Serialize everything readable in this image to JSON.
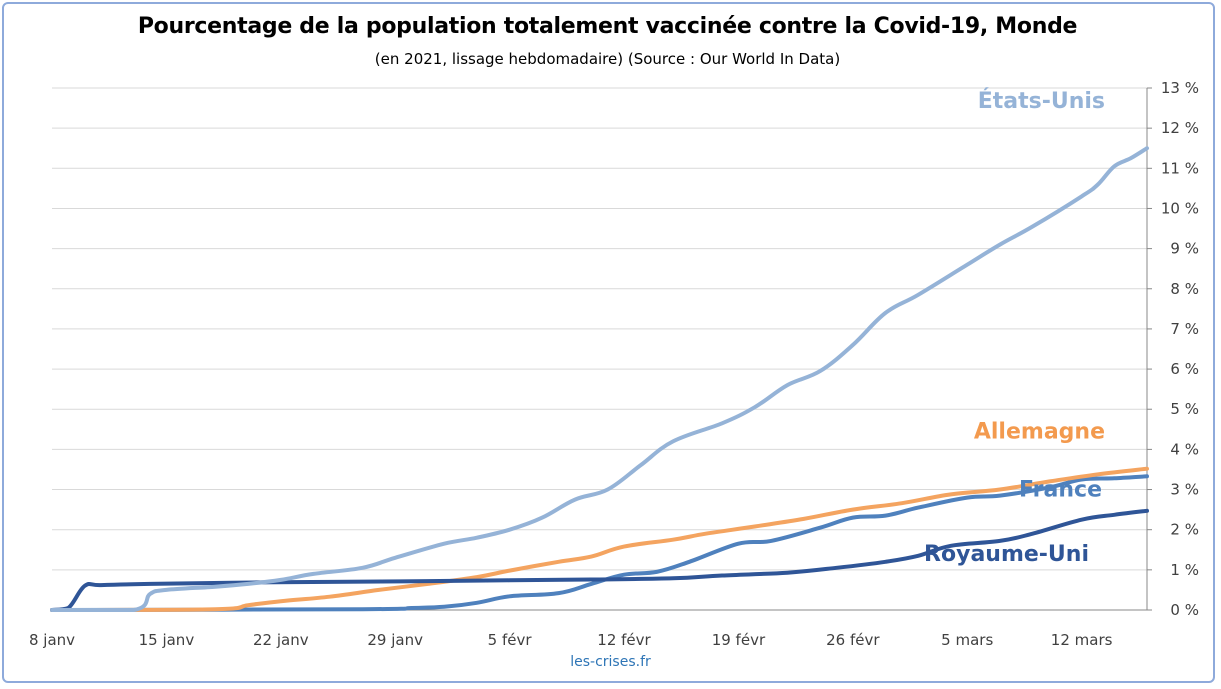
{
  "title": "Pourcentage de la population totalement vaccinée contre la Covid-19, Monde",
  "subtitle": "(en 2021, lissage hebdomadaire) (Source : Our World In Data)",
  "source_label": "les-crises.fr",
  "chart_data": {
    "type": "line",
    "x_tick_labels": [
      "8 janv",
      "15 janv",
      "22 janv",
      "29 janv",
      "5 févr",
      "12 févr",
      "19 févr",
      "26 févr",
      "5 mars",
      "12 mars"
    ],
    "y_tick_labels": [
      "0 %",
      "1 %",
      "2 %",
      "3 %",
      "4 %",
      "5 %",
      "6 %",
      "7 %",
      "8 %",
      "9 %",
      "10 %",
      "11 %",
      "12 %",
      "13 %"
    ],
    "xlim": [
      "2021-01-08",
      "2021-03-16"
    ],
    "ylim": [
      0,
      13
    ],
    "y_axis_side": "right",
    "grid": true,
    "legend": "inline labels",
    "series": [
      {
        "name": "États-Unis",
        "color": "#95b3d7",
        "label_color": "#95b3d7",
        "values": [
          [
            "2021-01-08",
            0
          ],
          [
            "2021-01-13",
            0
          ],
          [
            "2021-01-14",
            0.4
          ],
          [
            "2021-01-15",
            0.5
          ],
          [
            "2021-01-18",
            0.58
          ],
          [
            "2021-01-20",
            0.65
          ],
          [
            "2021-01-22",
            0.75
          ],
          [
            "2021-01-24",
            0.9
          ],
          [
            "2021-01-27",
            1.05
          ],
          [
            "2021-01-29",
            1.3
          ],
          [
            "2021-02-01",
            1.65
          ],
          [
            "2021-02-03",
            1.8
          ],
          [
            "2021-02-05",
            2.0
          ],
          [
            "2021-02-07",
            2.3
          ],
          [
            "2021-02-09",
            2.75
          ],
          [
            "2021-02-11",
            3.0
          ],
          [
            "2021-02-13",
            3.6
          ],
          [
            "2021-02-15",
            4.2
          ],
          [
            "2021-02-18",
            4.65
          ],
          [
            "2021-02-20",
            5.05
          ],
          [
            "2021-02-22",
            5.6
          ],
          [
            "2021-02-24",
            5.95
          ],
          [
            "2021-02-26",
            6.6
          ],
          [
            "2021-02-28",
            7.4
          ],
          [
            "2021-03-02",
            7.85
          ],
          [
            "2021-03-05",
            8.6
          ],
          [
            "2021-03-07",
            9.1
          ],
          [
            "2021-03-09",
            9.55
          ],
          [
            "2021-03-12",
            10.3
          ],
          [
            "2021-03-13",
            10.6
          ],
          [
            "2021-03-14",
            11.05
          ],
          [
            "2021-03-15",
            11.25
          ],
          [
            "2021-03-16",
            11.5
          ]
        ]
      },
      {
        "name": "Allemagne",
        "color": "#f4a460",
        "label_color": "#f39a4e",
        "values": [
          [
            "2021-01-08",
            0
          ],
          [
            "2021-01-18",
            0.02
          ],
          [
            "2021-01-20",
            0.12
          ],
          [
            "2021-01-22",
            0.22
          ],
          [
            "2021-01-25",
            0.33
          ],
          [
            "2021-01-28",
            0.5
          ],
          [
            "2021-01-31",
            0.65
          ],
          [
            "2021-02-03",
            0.82
          ],
          [
            "2021-02-05",
            0.98
          ],
          [
            "2021-02-08",
            1.2
          ],
          [
            "2021-02-10",
            1.33
          ],
          [
            "2021-02-12",
            1.58
          ],
          [
            "2021-02-15",
            1.75
          ],
          [
            "2021-02-17",
            1.9
          ],
          [
            "2021-02-20",
            2.08
          ],
          [
            "2021-02-23",
            2.27
          ],
          [
            "2021-02-26",
            2.5
          ],
          [
            "2021-03-01",
            2.66
          ],
          [
            "2021-03-04",
            2.88
          ],
          [
            "2021-03-07",
            3.0
          ],
          [
            "2021-03-10",
            3.2
          ],
          [
            "2021-03-13",
            3.38
          ],
          [
            "2021-03-16",
            3.52
          ]
        ]
      },
      {
        "name": "France",
        "color": "#4f81bd",
        "label_color": "#4f81bd",
        "values": [
          [
            "2021-01-08",
            0
          ],
          [
            "2021-01-27",
            0.02
          ],
          [
            "2021-01-30",
            0.05
          ],
          [
            "2021-02-01",
            0.08
          ],
          [
            "2021-02-03",
            0.18
          ],
          [
            "2021-02-05",
            0.34
          ],
          [
            "2021-02-08",
            0.42
          ],
          [
            "2021-02-10",
            0.65
          ],
          [
            "2021-02-12",
            0.88
          ],
          [
            "2021-02-14",
            0.95
          ],
          [
            "2021-02-16",
            1.2
          ],
          [
            "2021-02-19",
            1.65
          ],
          [
            "2021-02-21",
            1.72
          ],
          [
            "2021-02-24",
            2.05
          ],
          [
            "2021-02-26",
            2.3
          ],
          [
            "2021-02-28",
            2.35
          ],
          [
            "2021-03-02",
            2.55
          ],
          [
            "2021-03-05",
            2.8
          ],
          [
            "2021-03-07",
            2.85
          ],
          [
            "2021-03-10",
            3.05
          ],
          [
            "2021-03-12",
            3.25
          ],
          [
            "2021-03-14",
            3.28
          ],
          [
            "2021-03-16",
            3.33
          ]
        ]
      },
      {
        "name": "Royaume-Uni",
        "color": "#2f5597",
        "label_color": "#2f5597",
        "values": [
          [
            "2021-01-08",
            0
          ],
          [
            "2021-01-09",
            0.05
          ],
          [
            "2021-01-10",
            0.6
          ],
          [
            "2021-01-11",
            0.62
          ],
          [
            "2021-01-14",
            0.65
          ],
          [
            "2021-01-19",
            0.68
          ],
          [
            "2021-01-25",
            0.7
          ],
          [
            "2021-01-31",
            0.72
          ],
          [
            "2021-02-05",
            0.74
          ],
          [
            "2021-02-10",
            0.76
          ],
          [
            "2021-02-15",
            0.79
          ],
          [
            "2021-02-18",
            0.86
          ],
          [
            "2021-02-22",
            0.93
          ],
          [
            "2021-02-25",
            1.05
          ],
          [
            "2021-02-28",
            1.2
          ],
          [
            "2021-03-02",
            1.35
          ],
          [
            "2021-03-04",
            1.6
          ],
          [
            "2021-03-07",
            1.72
          ],
          [
            "2021-03-09",
            1.9
          ],
          [
            "2021-03-12",
            2.25
          ],
          [
            "2021-03-14",
            2.37
          ],
          [
            "2021-03-16",
            2.47
          ]
        ]
      }
    ]
  }
}
